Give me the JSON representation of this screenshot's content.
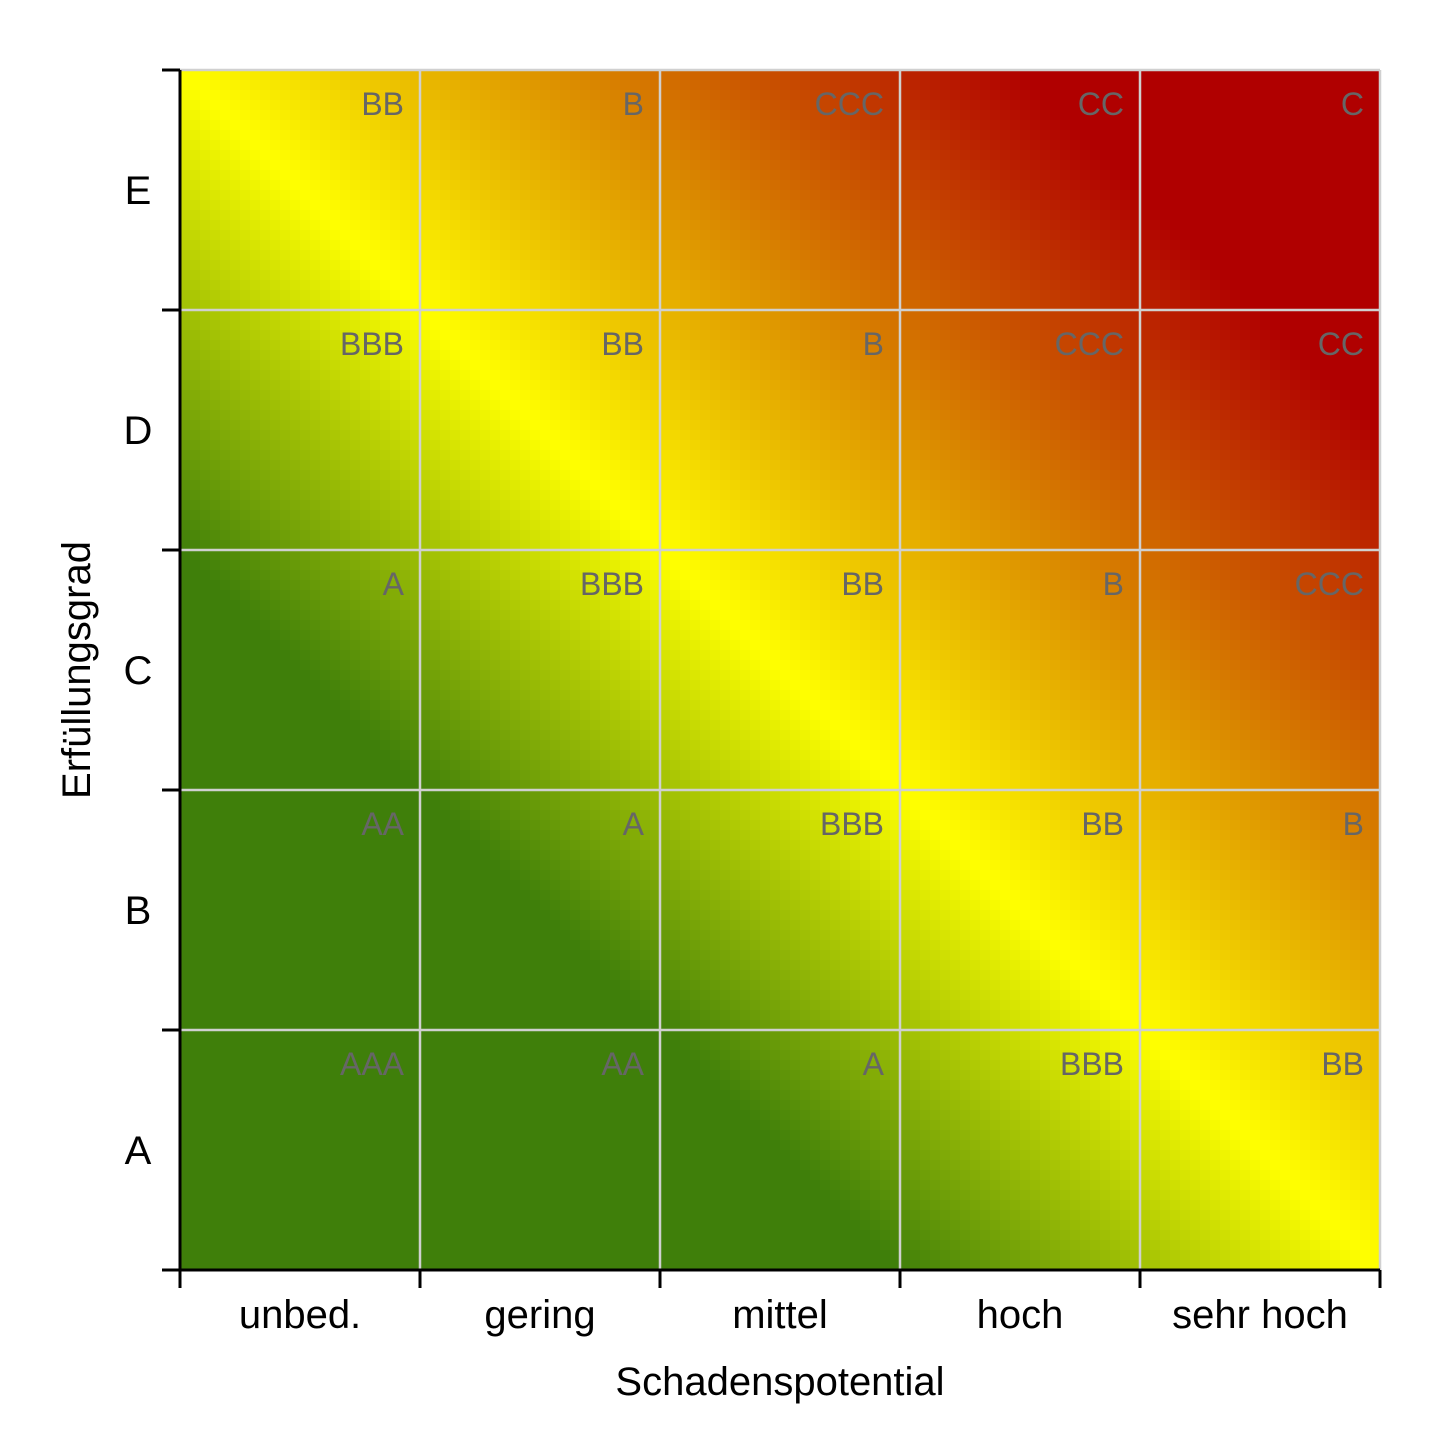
{
  "chart_data": {
    "type": "heatmap",
    "title": "",
    "xlabel": "Schadenspotential",
    "ylabel": "Erfüllungsgrad",
    "x_categories": [
      "unbed.",
      "gering",
      "mittel",
      "hoch",
      "sehr hoch"
    ],
    "y_categories": [
      "A",
      "B",
      "C",
      "D",
      "E"
    ],
    "cells": [
      [
        "AAA",
        "AA",
        "A",
        "BBB",
        "BB"
      ],
      [
        "AA",
        "A",
        "BBB",
        "BB",
        "B"
      ],
      [
        "A",
        "BBB",
        "BB",
        "B",
        "CCC"
      ],
      [
        "BBB",
        "BB",
        "B",
        "CCC",
        "CC"
      ],
      [
        "BB",
        "B",
        "CCC",
        "CC",
        "C"
      ]
    ],
    "colors": {
      "low": "#3f7f0a",
      "mid": "#ffff00",
      "high": "#b00000",
      "grid": "#d0d0d0",
      "label": "#666666"
    },
    "grid": true,
    "legend": false
  }
}
